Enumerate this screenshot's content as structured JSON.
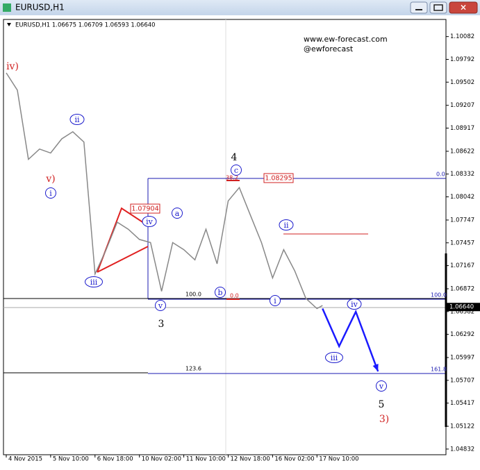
{
  "window_title": "EURUSD,H1",
  "chart_data": {
    "type": "line",
    "header": "EURUSD,H1  1.06675 1.06709 1.06593 1.06640",
    "watermark": [
      "www.ew-forecast.com",
      "@ewforecast"
    ],
    "x": [
      0,
      8,
      16,
      24,
      32,
      40,
      48,
      56,
      64,
      72,
      80,
      88,
      96,
      104,
      112,
      120,
      128,
      136,
      144,
      152,
      160,
      168,
      176,
      184,
      192,
      200,
      208,
      216,
      224,
      228
    ],
    "values": [
      1.0962,
      1.094,
      1.0852,
      1.0865,
      1.086,
      1.0878,
      1.0887,
      1.0874,
      1.0706,
      1.0737,
      1.0772,
      1.0763,
      1.075,
      1.0746,
      1.0684,
      1.0746,
      1.0737,
      1.0724,
      1.0763,
      1.0719,
      1.0799,
      1.0816,
      1.0781,
      1.0746,
      1.0701,
      1.0737,
      1.071,
      1.0675,
      1.0662,
      1.0666
    ],
    "color": "#888888",
    "projection": {
      "x": [
        228,
        240,
        252,
        268
      ],
      "values": [
        1.0662,
        1.0614,
        1.0658,
        1.0582
      ],
      "color": "#1a1aff"
    },
    "xlim": [
      -2,
      317
    ],
    "xticks": [
      {
        "value": 0,
        "label": "4 Nov 2015"
      },
      {
        "value": 32,
        "label": "5 Nov 10:00"
      },
      {
        "value": 64,
        "label": "6 Nov 18:00"
      },
      {
        "value": 96,
        "label": "10 Nov 02:00"
      },
      {
        "value": 128,
        "label": "11 Nov 10:00"
      },
      {
        "value": 160,
        "label": "12 Nov 18:00"
      },
      {
        "value": 192,
        "label": "16 Nov 02:00"
      },
      {
        "value": 224,
        "label": "17 Nov 10:00"
      }
    ],
    "ylim": [
      1.0476,
      1.103
    ],
    "yticks": [
      1.10082,
      1.09792,
      1.09502,
      1.09207,
      1.08917,
      1.08622,
      1.08332,
      1.08042,
      1.07747,
      1.07457,
      1.07167,
      1.06872,
      1.06582,
      1.06292,
      1.05997,
      1.05707,
      1.05417,
      1.05122,
      1.04832
    ],
    "current_price": {
      "value": 1.0664,
      "label": "1.06640"
    },
    "price_boxes": [
      "1.07904",
      "1.08295"
    ],
    "fib_labels": [
      "0.0",
      "100.0",
      "161.8",
      "100.0",
      "123.6",
      "0.0",
      "38.2"
    ],
    "wave_labels": [
      "iv)",
      "v)",
      "i",
      "ii",
      "iii",
      "iv",
      "v",
      "3",
      "a",
      "4",
      "c",
      "b",
      "ii",
      "i",
      "iv",
      "iii",
      "v",
      "5",
      "3)"
    ]
  }
}
